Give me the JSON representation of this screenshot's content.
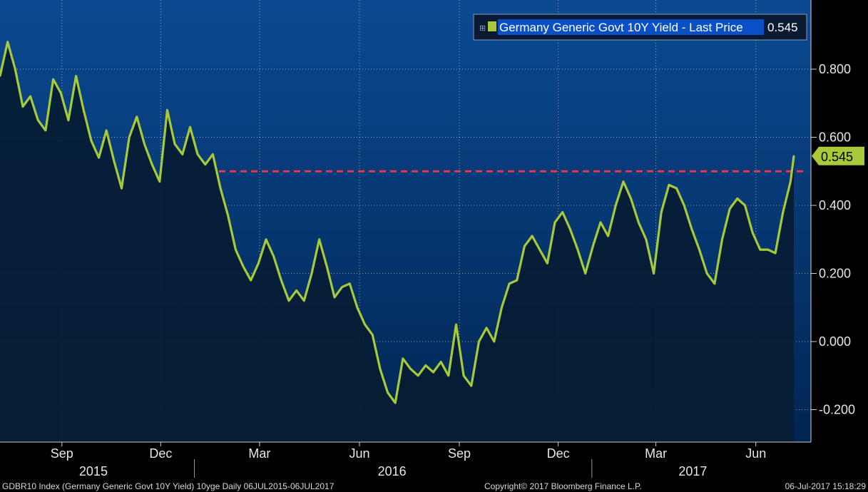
{
  "chart_data": {
    "type": "area",
    "series": [
      {
        "name": "Germany Generic Govt 10Y Yield - Last Price",
        "last_value": 0.545,
        "x": [
          "2015-07-06",
          "2015-07-13",
          "2015-07-20",
          "2015-07-27",
          "2015-08-03",
          "2015-08-10",
          "2015-08-17",
          "2015-08-24",
          "2015-08-31",
          "2015-09-07",
          "2015-09-14",
          "2015-09-21",
          "2015-09-28",
          "2015-10-05",
          "2015-10-12",
          "2015-10-19",
          "2015-10-26",
          "2015-11-02",
          "2015-11-09",
          "2015-11-16",
          "2015-11-23",
          "2015-11-30",
          "2015-12-07",
          "2015-12-14",
          "2015-12-21",
          "2015-12-28",
          "2016-01-04",
          "2016-01-11",
          "2016-01-18",
          "2016-01-25",
          "2016-02-01",
          "2016-02-08",
          "2016-02-15",
          "2016-02-22",
          "2016-02-29",
          "2016-03-07",
          "2016-03-14",
          "2016-03-21",
          "2016-03-28",
          "2016-04-04",
          "2016-04-11",
          "2016-04-18",
          "2016-04-25",
          "2016-05-02",
          "2016-05-09",
          "2016-05-16",
          "2016-05-23",
          "2016-05-30",
          "2016-06-06",
          "2016-06-13",
          "2016-06-20",
          "2016-06-27",
          "2016-07-04",
          "2016-07-11",
          "2016-07-18",
          "2016-07-25",
          "2016-08-01",
          "2016-08-08",
          "2016-08-15",
          "2016-08-22",
          "2016-08-29",
          "2016-09-05",
          "2016-09-12",
          "2016-09-19",
          "2016-09-26",
          "2016-10-03",
          "2016-10-10",
          "2016-10-17",
          "2016-10-24",
          "2016-10-31",
          "2016-11-07",
          "2016-11-14",
          "2016-11-21",
          "2016-11-28",
          "2016-12-05",
          "2016-12-12",
          "2016-12-19",
          "2016-12-26",
          "2017-01-02",
          "2017-01-09",
          "2017-01-16",
          "2017-01-23",
          "2017-01-30",
          "2017-02-06",
          "2017-02-13",
          "2017-02-20",
          "2017-02-27",
          "2017-03-06",
          "2017-03-13",
          "2017-03-20",
          "2017-03-27",
          "2017-04-03",
          "2017-04-10",
          "2017-04-17",
          "2017-04-24",
          "2017-05-01",
          "2017-05-08",
          "2017-05-15",
          "2017-05-22",
          "2017-05-29",
          "2017-06-05",
          "2017-06-12",
          "2017-06-19",
          "2017-06-26",
          "2017-07-03",
          "2017-07-06"
        ],
        "values": [
          0.78,
          0.88,
          0.8,
          0.69,
          0.72,
          0.65,
          0.62,
          0.77,
          0.73,
          0.65,
          0.78,
          0.68,
          0.59,
          0.54,
          0.62,
          0.53,
          0.45,
          0.6,
          0.66,
          0.58,
          0.52,
          0.47,
          0.68,
          0.58,
          0.55,
          0.63,
          0.55,
          0.52,
          0.55,
          0.45,
          0.37,
          0.27,
          0.22,
          0.18,
          0.23,
          0.3,
          0.25,
          0.18,
          0.12,
          0.15,
          0.12,
          0.2,
          0.3,
          0.22,
          0.13,
          0.16,
          0.17,
          0.1,
          0.05,
          0.02,
          -0.08,
          -0.15,
          -0.18,
          -0.05,
          -0.08,
          -0.1,
          -0.07,
          -0.09,
          -0.06,
          -0.1,
          0.05,
          -0.1,
          -0.13,
          0.0,
          0.04,
          0.0,
          0.1,
          0.17,
          0.18,
          0.28,
          0.31,
          0.27,
          0.23,
          0.35,
          0.38,
          0.33,
          0.27,
          0.2,
          0.28,
          0.35,
          0.31,
          0.4,
          0.47,
          0.42,
          0.35,
          0.3,
          0.2,
          0.38,
          0.46,
          0.45,
          0.4,
          0.33,
          0.27,
          0.2,
          0.17,
          0.3,
          0.39,
          0.42,
          0.4,
          0.32,
          0.27,
          0.27,
          0.26,
          0.38,
          0.47,
          0.545
        ]
      }
    ],
    "reference_line": {
      "value": 0.5,
      "color": "#e8364f",
      "style": "dashed"
    },
    "y_ticks": [
      "-0.200",
      "0.000",
      "0.200",
      "0.400",
      "0.600",
      "0.800"
    ],
    "y_tick_values": [
      -0.2,
      0.0,
      0.2,
      0.4,
      0.6,
      0.8
    ],
    "ylim": [
      -0.25,
      0.99
    ],
    "x_month_ticks": [
      {
        "label": "Sep",
        "date": "2015-09-01"
      },
      {
        "label": "Dec",
        "date": "2015-12-01"
      },
      {
        "label": "Mar",
        "date": "2016-03-01"
      },
      {
        "label": "Jun",
        "date": "2016-06-01"
      },
      {
        "label": "Sep",
        "date": "2016-09-01"
      },
      {
        "label": "Dec",
        "date": "2016-12-01"
      },
      {
        "label": "Mar",
        "date": "2017-03-01"
      },
      {
        "label": "Jun",
        "date": "2017-06-01"
      }
    ],
    "x_year_labels": [
      "2015",
      "2016",
      "2017"
    ],
    "x_range": [
      "2015-07-06",
      "2017-07-06"
    ],
    "grid": true,
    "legend_position": "top-right",
    "last_price_label": "0.545",
    "colors": {
      "background_top": "#0a4a92",
      "background_bottom": "#001f46",
      "area_fill": "#071c33",
      "line": "#a8c93a",
      "grid": "#ffffff",
      "axis_panel": "#000000"
    }
  },
  "footer": {
    "left": "GDBR10 Index (Germany Generic Govt 10Y Yield) 10yge  Daily 06JUL2015-06JUL2017",
    "center": "Copyright© 2017 Bloomberg Finance L.P.",
    "right": "06-Jul-2017 15:18:29"
  }
}
